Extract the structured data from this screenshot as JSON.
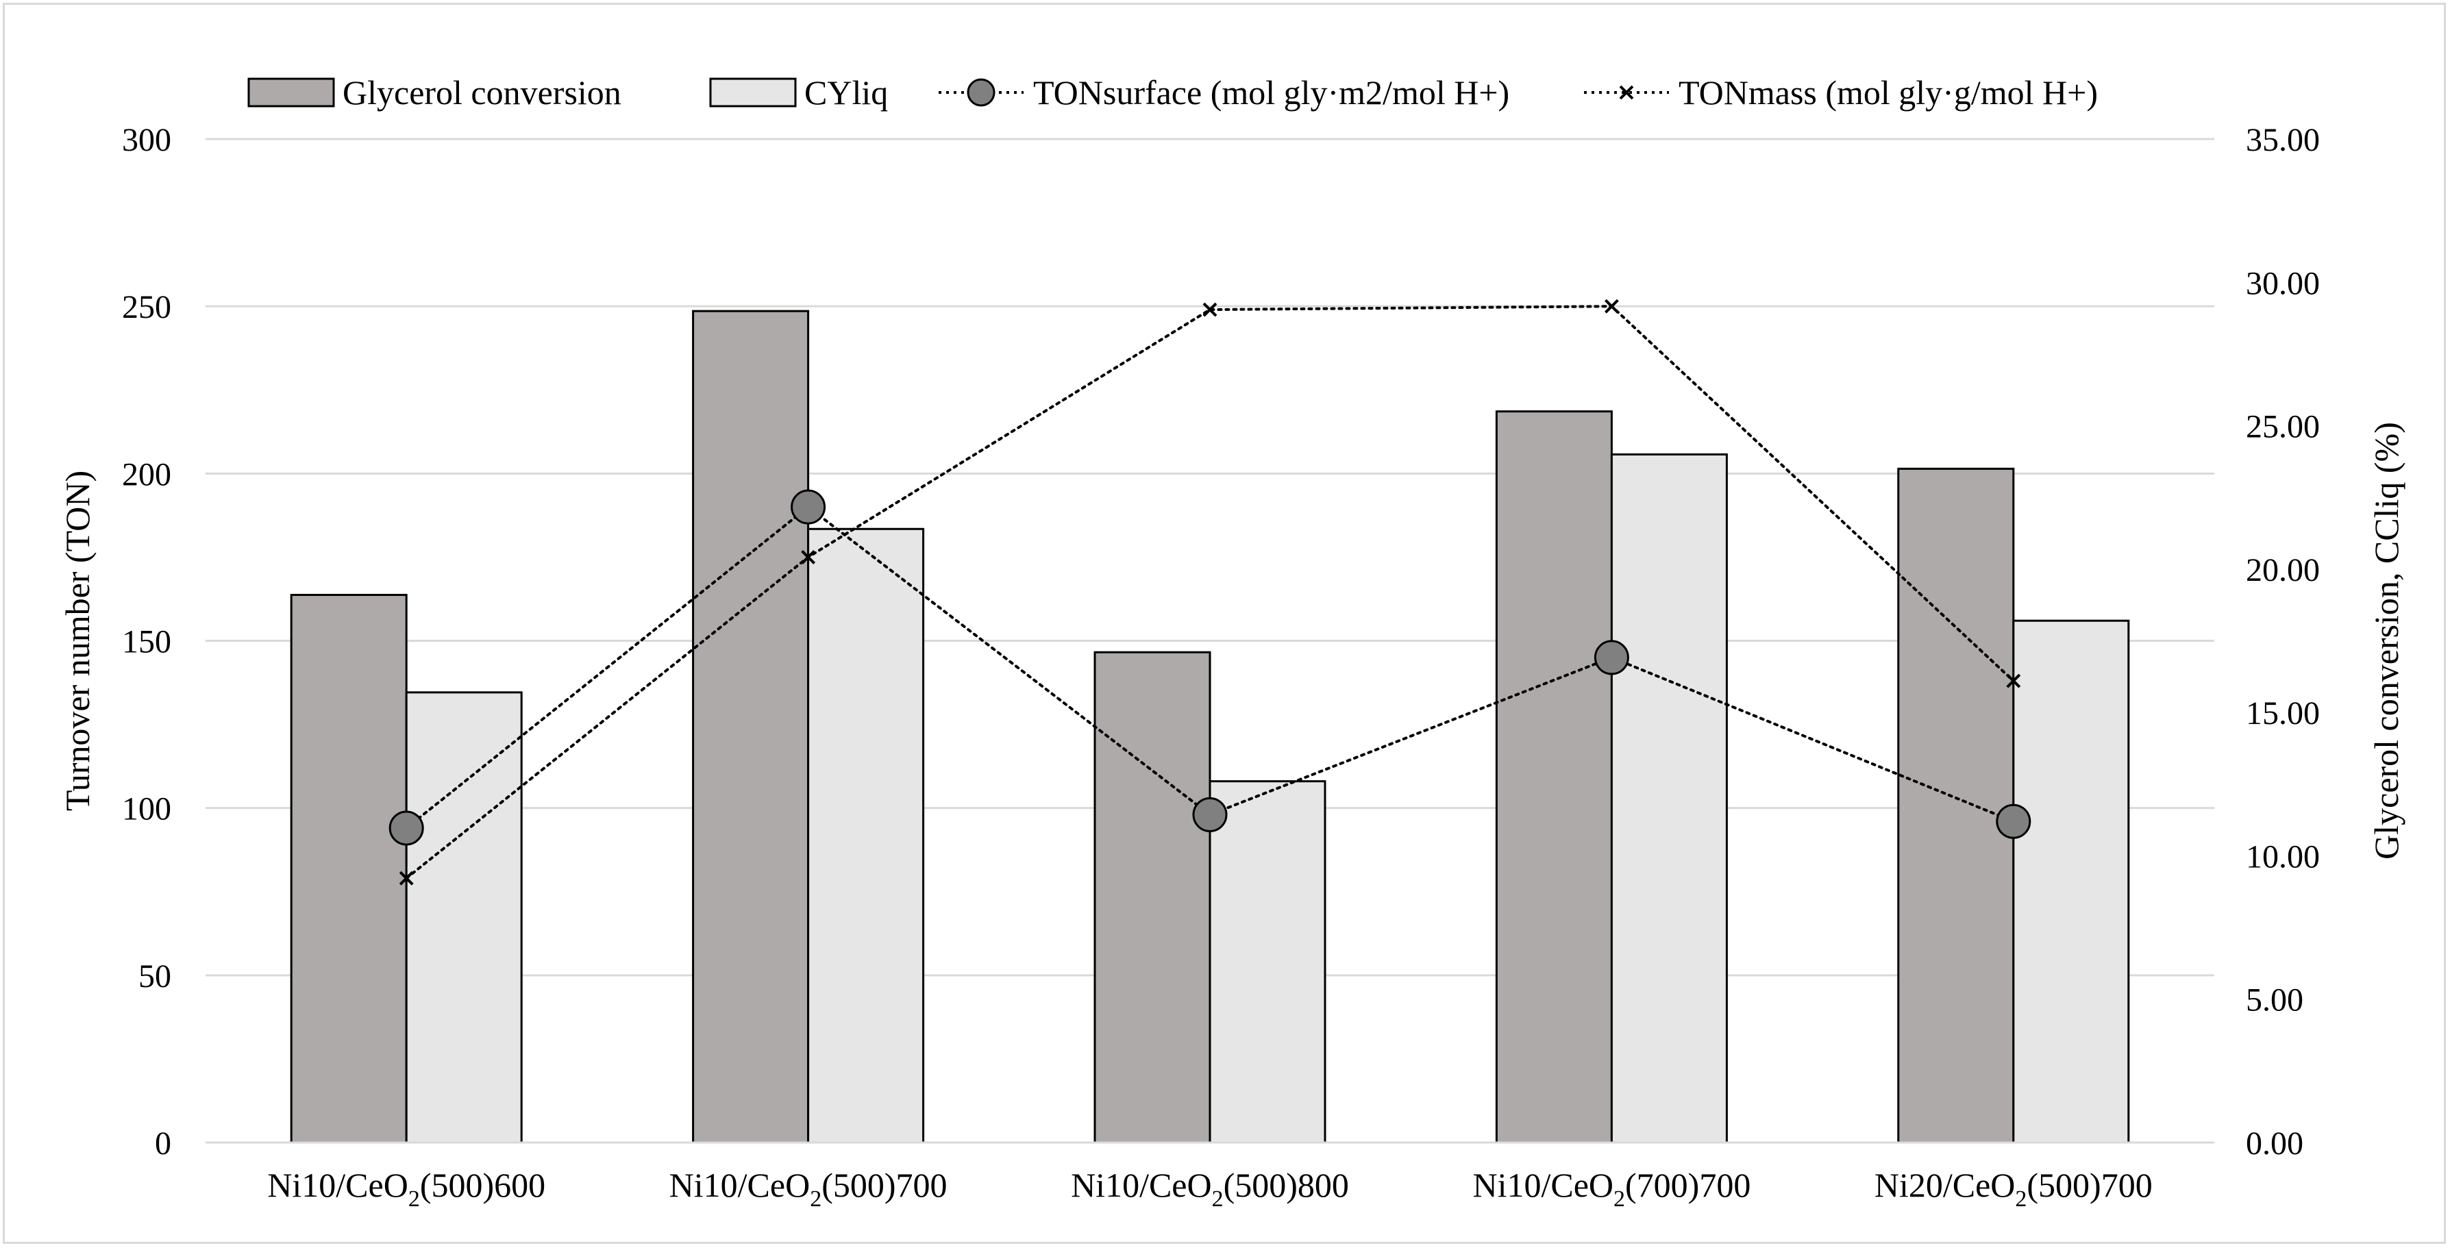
{
  "chart_data": {
    "type": "bar",
    "title": "",
    "categories": [
      {
        "prefix": "Ni10/CeO",
        "sub": "2",
        "suffix": "(500)600"
      },
      {
        "prefix": "Ni10/CeO",
        "sub": "2",
        "suffix": "(500)700"
      },
      {
        "prefix": "Ni10/CeO",
        "sub": "2",
        "suffix": "(500)800"
      },
      {
        "prefix": "Ni10/CeO",
        "sub": "2",
        "suffix": "(700)700"
      },
      {
        "prefix": "Ni20/CeO",
        "sub": "2",
        "suffix": "(500)700"
      }
    ],
    "series": [
      {
        "name": "Glycerol conversion",
        "kind": "bar",
        "axis": "right",
        "color": "#aeaaaa",
        "values": [
          19.1,
          29.0,
          17.1,
          25.5,
          23.5
        ]
      },
      {
        "name": "CYliq",
        "kind": "bar",
        "axis": "right",
        "color": "#e7e6e6",
        "values": [
          15.7,
          21.4,
          12.6,
          24.0,
          18.2
        ]
      },
      {
        "name": "TONsurface (mol gly·m2/mol H+)",
        "kind": "line",
        "marker": "circle",
        "axis": "left",
        "color": "#808080",
        "values": [
          94,
          190,
          98,
          145,
          96
        ]
      },
      {
        "name": "TONmass (mol gly·g/mol H+)",
        "kind": "line",
        "marker": "x",
        "axis": "left",
        "color": "#000000",
        "values": [
          79,
          175,
          249,
          250,
          138
        ]
      }
    ],
    "left_axis": {
      "label": "Turnover number (TON)",
      "min": 0,
      "max": 300,
      "ticks": [
        "0",
        "50",
        "100",
        "150",
        "200",
        "250",
        "300"
      ]
    },
    "right_axis": {
      "label": "Glycerol conversion, CCliq (%)",
      "min": 0,
      "max": 35,
      "ticks": [
        "0.00",
        "5.00",
        "10.00",
        "15.00",
        "20.00",
        "25.00",
        "30.00",
        "35.00"
      ]
    },
    "grid": true,
    "legend_position": "top"
  }
}
